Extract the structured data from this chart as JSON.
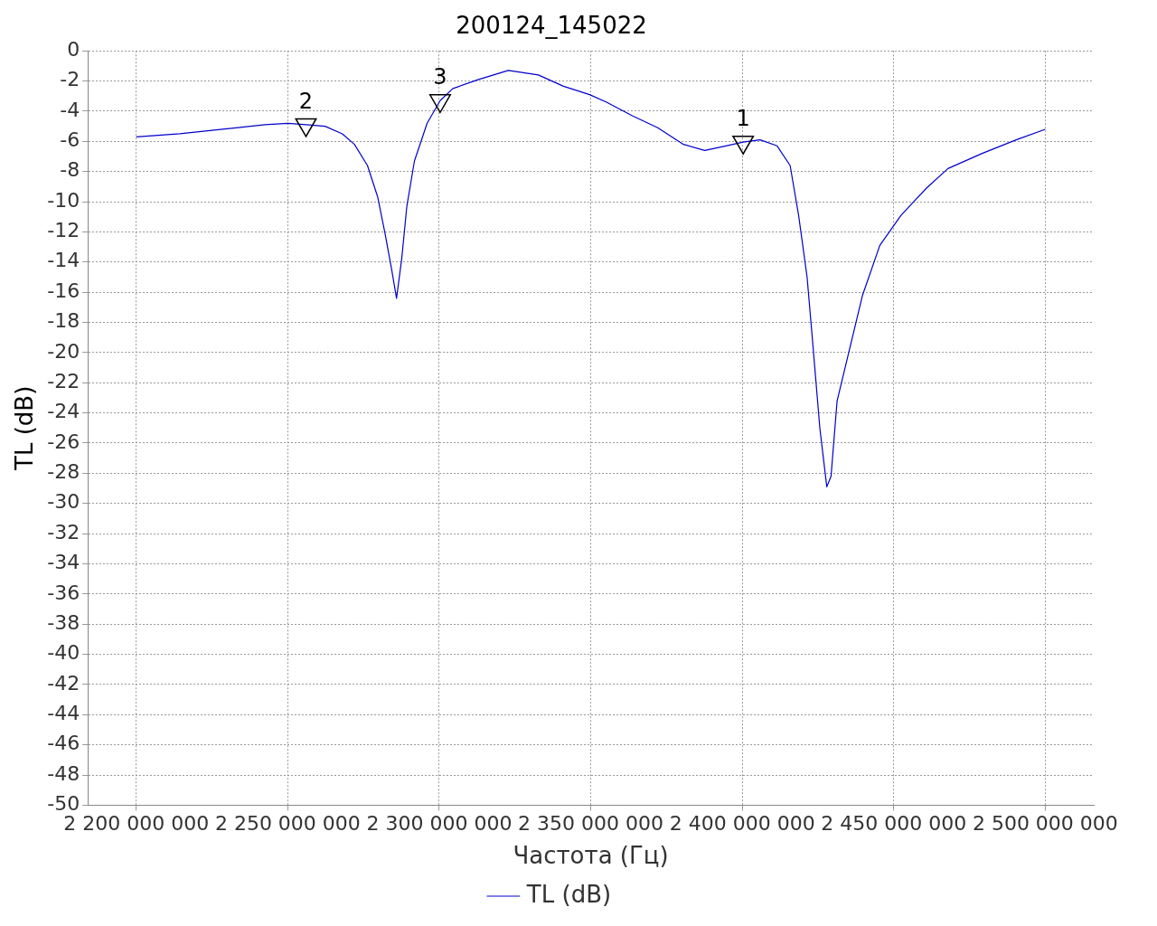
{
  "chart_data": {
    "type": "line",
    "title": "200124_145022",
    "xlabel": "Частота (Гц)",
    "ylabel": "TL (dB)",
    "x": [
      2200000000,
      2214400000,
      2228500000,
      2242500000,
      2250000000,
      2256000000,
      2262300000,
      2268000000,
      2272000000,
      2276300000,
      2279700000,
      2282000000,
      2284200000,
      2285900000,
      2287600000,
      2289300000,
      2291800000,
      2296000000,
      2300300000,
      2304500000,
      2313000000,
      2322800000,
      2332700000,
      2341000000,
      2349600000,
      2355200000,
      2363700000,
      2372100000,
      2380600000,
      2387600000,
      2394600000,
      2400300000,
      2405900000,
      2411500000,
      2415800000,
      2418600000,
      2421400000,
      2423400000,
      2425600000,
      2427900000,
      2429300000,
      2431300000,
      2435500000,
      2439700000,
      2445400000,
      2452400000,
      2460800000,
      2467900000,
      2479200000,
      2490400000,
      2500000000
    ],
    "series": [
      {
        "type": "scatter",
        "marker": "triangle",
        "color": "#000000",
        "x": [
          2400300000,
          2256000000,
          2300300000
        ],
        "values": [
          -6.05,
          -4.9,
          -3.3
        ]
      },
      {
        "name": "TL (dB)",
        "color": "#0000cc",
        "values": [
          -5.7,
          -5.5,
          -5.2,
          -4.9,
          -4.8,
          -4.9,
          -5.0,
          -5.5,
          -6.2,
          -7.6,
          -9.7,
          -12,
          -14.4,
          -16.4,
          -13.8,
          -10.3,
          -7.3,
          -4.8,
          -3.3,
          -2.5,
          -1.9,
          -1.3,
          -1.6,
          -2.35,
          -2.9,
          -3.4,
          -4.3,
          -5.1,
          -6.2,
          -6.6,
          -6.3,
          -6.05,
          -5.9,
          -6.3,
          -7.6,
          -10.9,
          -15,
          -19.7,
          -25,
          -28.9,
          -28.2,
          -23.2,
          -19.7,
          -16.2,
          -12.9,
          -10.9,
          -9.1,
          -7.8,
          -6.8,
          -5.9,
          -5.2
        ]
      }
    ],
    "xlim": [
      2184000000,
      2516000000
    ],
    "xticks": [
      {
        "value": 2200000000,
        "label": "2 200 000 000"
      },
      {
        "value": 2250000000,
        "label": "2 250 000 000"
      },
      {
        "value": 2300000000,
        "label": "2 300 000 000"
      },
      {
        "value": 2350000000,
        "label": "2 350 000 000"
      },
      {
        "value": 2400000000,
        "label": "2 400 000 000"
      },
      {
        "value": 2450000000,
        "label": "2 450 000 000"
      },
      {
        "value": 2500000000,
        "label": "2 500 000 000"
      }
    ],
    "ylim": [
      -50,
      0
    ],
    "yticks": [
      0,
      -2,
      -4,
      -6,
      -8,
      -10,
      -12,
      -14,
      -16,
      -18,
      -20,
      -22,
      -24,
      -26,
      -28,
      -30,
      -32,
      -34,
      -36,
      -38,
      -40,
      -42,
      -44,
      -46,
      -48,
      -50
    ],
    "annotations": [
      {
        "text": "1",
        "x": 2400300000,
        "y": -6.05
      },
      {
        "text": "2",
        "x": 2256000000,
        "y": -4.9
      },
      {
        "text": "3",
        "x": 2300300000,
        "y": -3.3
      }
    ],
    "grid": true,
    "legend": "bottom",
    "marker": "none",
    "line_style": "solid"
  }
}
